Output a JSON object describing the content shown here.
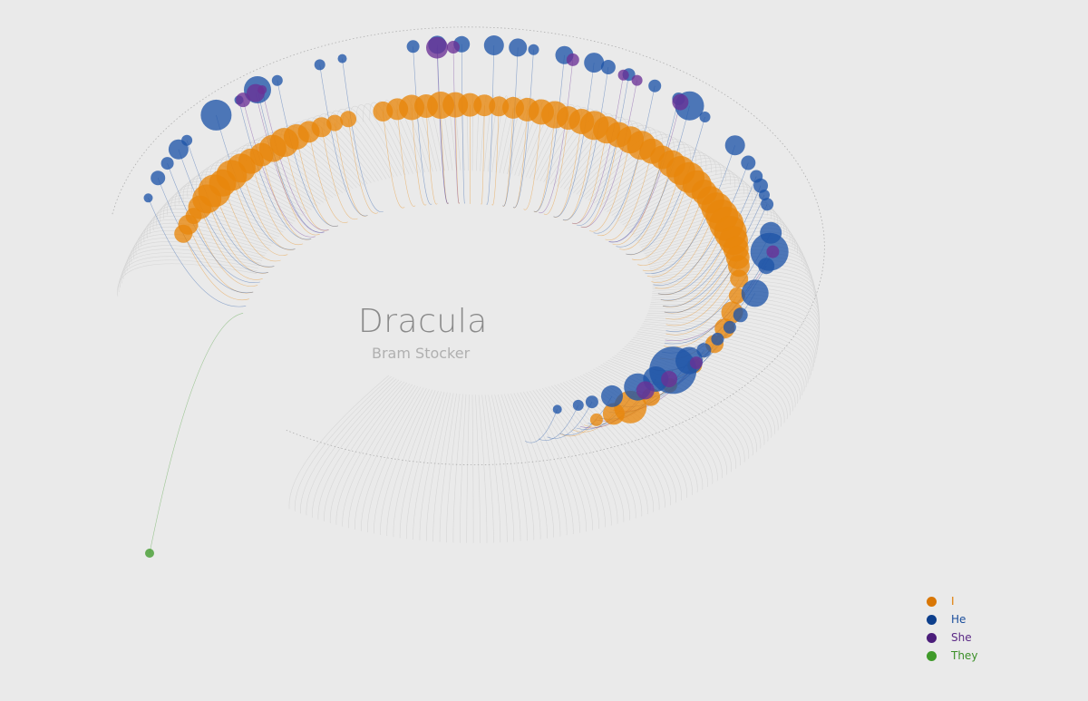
{
  "title": "Dracula",
  "subtitle": "Bram Stocker",
  "colors": {
    "background": "#eaeaea",
    "shell_line": "#cfcfcf",
    "edge_line": "#555555"
  },
  "legend": [
    {
      "label": "I",
      "color": "#e07b00",
      "dot_color": "#d97706"
    },
    {
      "label": "He",
      "color": "#1c4f9c",
      "dot_color": "#0d3f8c"
    },
    {
      "label": "She",
      "color": "#5b2a86",
      "dot_color": "#4b1d7a"
    },
    {
      "label": "They",
      "color": "#3a8f26",
      "dot_color": "#3f9a2a"
    }
  ],
  "chart_data": {
    "type": "scatter",
    "title": "Dracula",
    "subtitle": "Bram Stocker",
    "description_units": "each bubble is a pronoun occurrence cluster placed along the text; magnitude is relative bubble size",
    "series": [
      {
        "name": "I",
        "color": "#e8870c",
        "points": [
          {
            "pos": 0.02,
            "size": 10
          },
          {
            "pos": 0.03,
            "size": 11
          },
          {
            "pos": 0.04,
            "size": 9
          },
          {
            "pos": 0.05,
            "size": 13
          },
          {
            "pos": 0.06,
            "size": 16
          },
          {
            "pos": 0.07,
            "size": 18
          },
          {
            "pos": 0.08,
            "size": 15
          },
          {
            "pos": 0.09,
            "size": 17
          },
          {
            "pos": 0.1,
            "size": 16
          },
          {
            "pos": 0.11,
            "size": 14
          },
          {
            "pos": 0.12,
            "size": 13
          },
          {
            "pos": 0.13,
            "size": 15
          },
          {
            "pos": 0.14,
            "size": 16
          },
          {
            "pos": 0.15,
            "size": 14
          },
          {
            "pos": 0.16,
            "size": 12
          },
          {
            "pos": 0.17,
            "size": 11
          },
          {
            "pos": 0.18,
            "size": 9
          },
          {
            "pos": 0.19,
            "size": 9
          },
          {
            "pos": 0.215,
            "size": 11
          },
          {
            "pos": 0.225,
            "size": 12
          },
          {
            "pos": 0.235,
            "size": 14
          },
          {
            "pos": 0.245,
            "size": 13
          },
          {
            "pos": 0.255,
            "size": 15
          },
          {
            "pos": 0.265,
            "size": 14
          },
          {
            "pos": 0.275,
            "size": 13
          },
          {
            "pos": 0.285,
            "size": 12
          },
          {
            "pos": 0.295,
            "size": 11
          },
          {
            "pos": 0.305,
            "size": 12
          },
          {
            "pos": 0.315,
            "size": 13
          },
          {
            "pos": 0.325,
            "size": 14
          },
          {
            "pos": 0.335,
            "size": 15
          },
          {
            "pos": 0.345,
            "size": 13
          },
          {
            "pos": 0.355,
            "size": 14
          },
          {
            "pos": 0.365,
            "size": 16
          },
          {
            "pos": 0.375,
            "size": 15
          },
          {
            "pos": 0.385,
            "size": 14
          },
          {
            "pos": 0.395,
            "size": 15
          },
          {
            "pos": 0.405,
            "size": 16
          },
          {
            "pos": 0.415,
            "size": 14
          },
          {
            "pos": 0.425,
            "size": 13
          },
          {
            "pos": 0.435,
            "size": 15
          },
          {
            "pos": 0.445,
            "size": 16
          },
          {
            "pos": 0.455,
            "size": 17
          },
          {
            "pos": 0.465,
            "size": 16
          },
          {
            "pos": 0.475,
            "size": 14
          },
          {
            "pos": 0.485,
            "size": 15
          },
          {
            "pos": 0.495,
            "size": 17
          },
          {
            "pos": 0.505,
            "size": 18
          },
          {
            "pos": 0.515,
            "size": 19
          },
          {
            "pos": 0.525,
            "size": 18
          },
          {
            "pos": 0.535,
            "size": 16
          },
          {
            "pos": 0.545,
            "size": 14
          },
          {
            "pos": 0.555,
            "size": 13
          },
          {
            "pos": 0.565,
            "size": 12
          },
          {
            "pos": 0.58,
            "size": 10
          },
          {
            "pos": 0.6,
            "size": 9
          },
          {
            "pos": 0.62,
            "size": 12
          },
          {
            "pos": 0.64,
            "size": 11
          },
          {
            "pos": 0.66,
            "size": 10
          },
          {
            "pos": 0.69,
            "size": 8
          },
          {
            "pos": 0.72,
            "size": 8
          },
          {
            "pos": 0.74,
            "size": 10
          },
          {
            "pos": 0.76,
            "size": 18
          },
          {
            "pos": 0.775,
            "size": 12
          },
          {
            "pos": 0.79,
            "size": 7
          }
        ]
      },
      {
        "name": "He",
        "color": "#1f55a8",
        "points": [
          {
            "pos": 0.01,
            "size": 5
          },
          {
            "pos": 0.03,
            "size": 8
          },
          {
            "pos": 0.045,
            "size": 7
          },
          {
            "pos": 0.06,
            "size": 11
          },
          {
            "pos": 0.07,
            "size": 6
          },
          {
            "pos": 0.1,
            "size": 17
          },
          {
            "pos": 0.12,
            "size": 5
          },
          {
            "pos": 0.135,
            "size": 15
          },
          {
            "pos": 0.15,
            "size": 6
          },
          {
            "pos": 0.18,
            "size": 6
          },
          {
            "pos": 0.195,
            "size": 5
          },
          {
            "pos": 0.24,
            "size": 7
          },
          {
            "pos": 0.255,
            "size": 10
          },
          {
            "pos": 0.27,
            "size": 9
          },
          {
            "pos": 0.29,
            "size": 11
          },
          {
            "pos": 0.305,
            "size": 10
          },
          {
            "pos": 0.315,
            "size": 6
          },
          {
            "pos": 0.335,
            "size": 10
          },
          {
            "pos": 0.355,
            "size": 11
          },
          {
            "pos": 0.365,
            "size": 8
          },
          {
            "pos": 0.38,
            "size": 7
          },
          {
            "pos": 0.4,
            "size": 7
          },
          {
            "pos": 0.42,
            "size": 7
          },
          {
            "pos": 0.43,
            "size": 16
          },
          {
            "pos": 0.445,
            "size": 6
          },
          {
            "pos": 0.48,
            "size": 11
          },
          {
            "pos": 0.5,
            "size": 8
          },
          {
            "pos": 0.515,
            "size": 7
          },
          {
            "pos": 0.525,
            "size": 8
          },
          {
            "pos": 0.535,
            "size": 6
          },
          {
            "pos": 0.545,
            "size": 7
          },
          {
            "pos": 0.575,
            "size": 12
          },
          {
            "pos": 0.595,
            "size": 21
          },
          {
            "pos": 0.61,
            "size": 9
          },
          {
            "pos": 0.64,
            "size": 15
          },
          {
            "pos": 0.665,
            "size": 8
          },
          {
            "pos": 0.68,
            "size": 7
          },
          {
            "pos": 0.695,
            "size": 7
          },
          {
            "pos": 0.71,
            "size": 8
          },
          {
            "pos": 0.725,
            "size": 15
          },
          {
            "pos": 0.74,
            "size": 26
          },
          {
            "pos": 0.755,
            "size": 14
          },
          {
            "pos": 0.77,
            "size": 15
          },
          {
            "pos": 0.79,
            "size": 12
          },
          {
            "pos": 0.805,
            "size": 7
          },
          {
            "pos": 0.815,
            "size": 6
          },
          {
            "pos": 0.83,
            "size": 5
          }
        ]
      },
      {
        "name": "She",
        "color": "#6a3196",
        "points": [
          {
            "pos": 0.125,
            "size": 8
          },
          {
            "pos": 0.135,
            "size": 10
          },
          {
            "pos": 0.14,
            "size": 5
          },
          {
            "pos": 0.255,
            "size": 12
          },
          {
            "pos": 0.265,
            "size": 7
          },
          {
            "pos": 0.34,
            "size": 7
          },
          {
            "pos": 0.375,
            "size": 6
          },
          {
            "pos": 0.385,
            "size": 6
          },
          {
            "pos": 0.42,
            "size": 9
          },
          {
            "pos": 0.59,
            "size": 7
          },
          {
            "pos": 0.72,
            "size": 7
          },
          {
            "pos": 0.745,
            "size": 9
          },
          {
            "pos": 0.765,
            "size": 10
          }
        ]
      },
      {
        "name": "They",
        "color": "#3f9a2a",
        "points": [
          {
            "pos": 0.0,
            "size": 5
          }
        ]
      }
    ],
    "legend_placement": "bottom-right",
    "grid": false
  }
}
